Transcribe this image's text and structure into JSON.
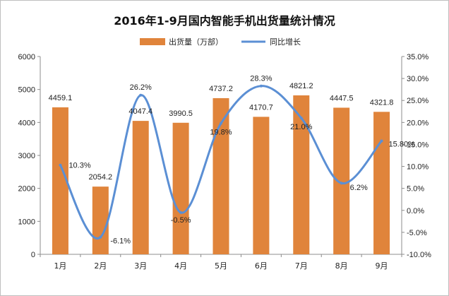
{
  "chart_data": {
    "type": "bar",
    "title": "2016年1-9月国内智能手机出货量统计情况",
    "categories": [
      "1月",
      "2月",
      "3月",
      "4月",
      "5月",
      "6月",
      "7月",
      "8月",
      "9月"
    ],
    "series": [
      {
        "name": "出货量（万部）",
        "type": "bar",
        "axis": "left",
        "color": "#e0843b",
        "values": [
          4459.1,
          2054.2,
          4047.4,
          3990.5,
          4737.2,
          4170.7,
          4821.2,
          4447.5,
          4321.8
        ],
        "labels": [
          "4459.1",
          "2054.2",
          "4047.4",
          "3990.5",
          "4737.2",
          "4170.7",
          "4821.2",
          "4447.5",
          "4321.8"
        ]
      },
      {
        "name": "同比增长",
        "type": "line",
        "axis": "right",
        "color": "#5b8fd4",
        "values": [
          10.3,
          -6.1,
          26.2,
          -0.5,
          19.8,
          28.3,
          21.0,
          6.2,
          15.8
        ],
        "labels": [
          "10.3%",
          "-6.1%",
          "26.2%",
          "-0.5%",
          "19.8%",
          "28.3%",
          "21.0%",
          "6.2%",
          "15.80%"
        ]
      }
    ],
    "left_axis": {
      "ylim": [
        0,
        6000
      ],
      "ticks": [
        0,
        1000,
        2000,
        3000,
        4000,
        5000,
        6000
      ],
      "tick_labels": [
        "0",
        "1000",
        "2000",
        "3000",
        "4000",
        "5000",
        "6000"
      ]
    },
    "right_axis": {
      "ylim": [
        -10,
        35
      ],
      "ticks": [
        -10,
        -5,
        0,
        5,
        10,
        15,
        20,
        25,
        30,
        35
      ],
      "tick_labels": [
        "-10.0%",
        "-5.0%",
        "0.0%",
        "5.0%",
        "10.0%",
        "15.0%",
        "20.0%",
        "25.0%",
        "30.0%",
        "35.0%"
      ]
    },
    "legend_position": "top",
    "grid": false
  }
}
